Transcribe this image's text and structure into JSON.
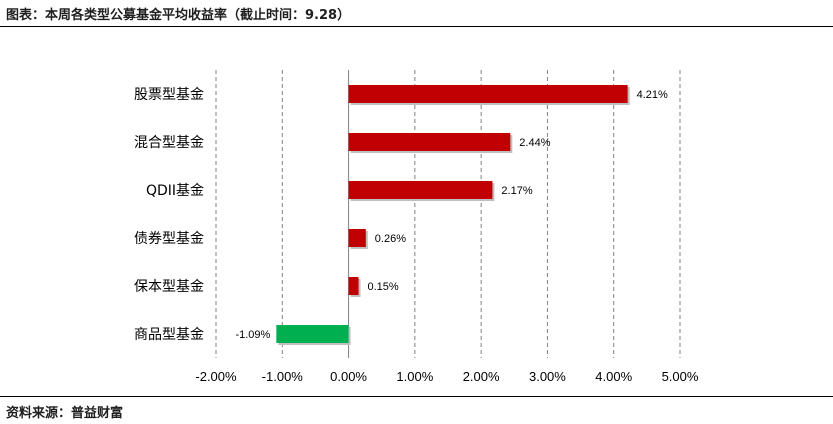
{
  "header": {
    "title": "图表：本周各类型公募基金平均收益率（截止时间：9.28）"
  },
  "footer": {
    "source": "资料来源：普益财富"
  },
  "colors": {
    "positive": "#c00000",
    "negative": "#00b050",
    "gridline": "#808080"
  },
  "chart_data": {
    "type": "bar",
    "orientation": "horizontal",
    "title": "本周各类型公募基金平均收益率",
    "categories": [
      "股票型基金",
      "混合型基金",
      "QDII基金",
      "债券型基金",
      "保本型基金",
      "商品型基金"
    ],
    "values": [
      4.21,
      2.44,
      2.17,
      0.26,
      0.15,
      -1.09
    ],
    "data_labels": [
      "4.21%",
      "2.44%",
      "2.17%",
      "0.26%",
      "0.15%",
      "-1.09%"
    ],
    "xlim": [
      -2,
      5
    ],
    "xticks": [
      -2,
      -1,
      0,
      1,
      2,
      3,
      4,
      5
    ],
    "xtick_labels": [
      "-2.00%",
      "-1.00%",
      "0.00%",
      "1.00%",
      "2.00%",
      "3.00%",
      "4.00%",
      "5.00%"
    ],
    "gridlines": "vertical-dashed",
    "legend": "none"
  }
}
